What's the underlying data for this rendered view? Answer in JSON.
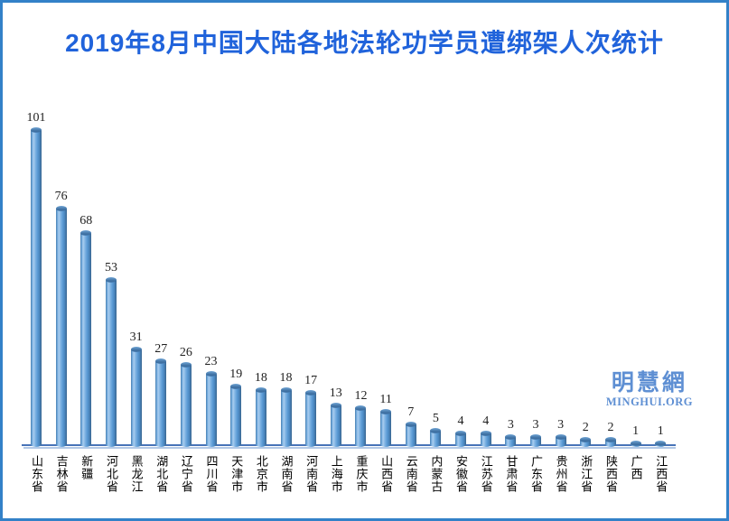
{
  "page": {
    "title": "2019年8月中国大陆各地法轮功学员遭绑架人次统计"
  },
  "watermark": {
    "cjk": "明慧網",
    "latin": "MINGHUI.ORG"
  },
  "colors": {
    "border": "#3381C8",
    "title": "#2063DB",
    "bar": "#5B9BD5",
    "bar_highlight": "#A9CDEF",
    "bar_shadow": "#39658F",
    "axis_line": "#4874B8",
    "axis_line_shadow": "#B3C9E6",
    "watermark": "#5E8FD3",
    "value_label": "#1F1F1F",
    "category_label": "#000000"
  },
  "chart_data": {
    "type": "bar",
    "title": "2019年8月中国大陆各地法轮功学员遭绑架人次统计",
    "categories": [
      "山东省",
      "吉林省",
      "新疆",
      "河北省",
      "黑龙江",
      "湖北省",
      "辽宁省",
      "四川省",
      "天津市",
      "北京市",
      "湖南省",
      "河南省",
      "上海市",
      "重庆市",
      "山西省",
      "云南省",
      "内蒙古",
      "安徽省",
      "江苏省",
      "甘肃省",
      "广东省",
      "贵州省",
      "浙江省",
      "陕西省",
      "广西",
      "江西省"
    ],
    "values": [
      101,
      76,
      68,
      53,
      31,
      27,
      26,
      23,
      19,
      18,
      18,
      17,
      13,
      12,
      11,
      7,
      5,
      4,
      4,
      3,
      3,
      3,
      2,
      2,
      1,
      1
    ],
    "xlabel": "",
    "ylabel": "",
    "ylim": [
      0,
      110
    ],
    "grid": false,
    "legend": false,
    "value_labels": true,
    "bar_style": "3d-cylinder",
    "category_orientation": "vertical-upright"
  }
}
